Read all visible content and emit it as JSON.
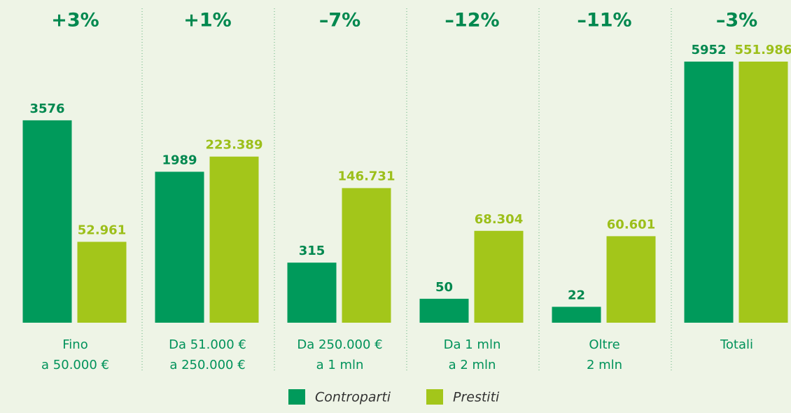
{
  "chart_data": {
    "type": "bar",
    "categories": [
      [
        "Fino",
        "a 50.000 €"
      ],
      [
        "Da 51.000 €",
        "a 250.000 €"
      ],
      [
        "Da 250.000 €",
        "a 1 mln"
      ],
      [
        "Da 1 mln",
        "a 2 mln"
      ],
      [
        "Oltre",
        "2 mln"
      ],
      [
        "Totali"
      ]
    ],
    "change": {
      "values": [
        3,
        1,
        -7,
        -12,
        -11,
        -3
      ],
      "value_labels": [
        "+3%",
        "+1%",
        "–7%",
        "–12%",
        "–11%",
        "–3%"
      ]
    },
    "series": [
      {
        "name": "Controparti",
        "color": "#009a5b",
        "values": [
          3576,
          1989,
          315,
          50,
          22,
          5952
        ]
      },
      {
        "name": "Prestiti",
        "color": "#a3c61a",
        "values": [
          52961,
          223389,
          146731,
          68304,
          60601,
          551986
        ],
        "value_labels": [
          "52.961",
          "223.389",
          "146.731",
          "68.304",
          "60.601",
          "551.986"
        ]
      }
    ]
  }
}
